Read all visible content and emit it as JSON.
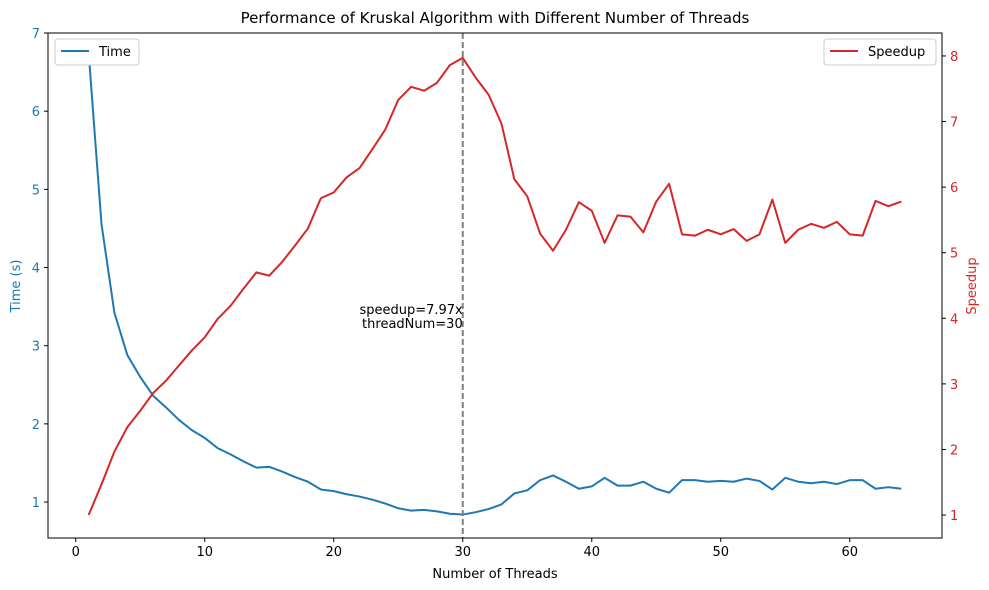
{
  "chart_data": {
    "type": "line",
    "title": "Performance of Kruskal Algorithm with Different Number of Threads",
    "xlabel": "Number of Threads",
    "ylabel_left": "Time (s)",
    "ylabel_right": "Speedup",
    "xlim": [
      -2.15,
      67.15
    ],
    "ylim_left": [
      0.54,
      7.0
    ],
    "ylim_right": [
      0.65,
      8.35
    ],
    "xticks": [
      0,
      10,
      20,
      30,
      40,
      50,
      60
    ],
    "yticks_left": [
      1,
      2,
      3,
      4,
      5,
      6,
      7
    ],
    "yticks_right": [
      1,
      2,
      3,
      4,
      5,
      6,
      7,
      8
    ],
    "x": [
      1,
      2,
      3,
      4,
      5,
      6,
      7,
      8,
      9,
      10,
      11,
      12,
      13,
      14,
      15,
      16,
      17,
      18,
      19,
      20,
      21,
      22,
      23,
      24,
      25,
      26,
      27,
      28,
      29,
      30,
      31,
      32,
      33,
      34,
      35,
      36,
      37,
      38,
      39,
      40,
      41,
      42,
      43,
      44,
      45,
      46,
      47,
      48,
      49,
      50,
      51,
      52,
      53,
      54,
      55,
      56,
      57,
      58,
      59,
      60,
      61,
      62,
      63,
      64
    ],
    "series": [
      {
        "name": "Time",
        "axis": "left",
        "color": "#1f77b4",
        "values": [
          6.75,
          4.55,
          3.42,
          2.88,
          2.6,
          2.36,
          2.21,
          2.05,
          1.92,
          1.82,
          1.69,
          1.61,
          1.52,
          1.44,
          1.45,
          1.39,
          1.32,
          1.26,
          1.16,
          1.14,
          1.1,
          1.07,
          1.03,
          0.98,
          0.92,
          0.89,
          0.9,
          0.88,
          0.85,
          0.84,
          0.87,
          0.91,
          0.97,
          1.11,
          1.15,
          1.28,
          1.34,
          1.26,
          1.17,
          1.2,
          1.31,
          1.21,
          1.21,
          1.26,
          1.17,
          1.12,
          1.28,
          1.28,
          1.26,
          1.27,
          1.26,
          1.3,
          1.27,
          1.16,
          1.31,
          1.26,
          1.24,
          1.26,
          1.23,
          1.28,
          1.28,
          1.17,
          1.19,
          1.17
        ]
      },
      {
        "name": "Speedup",
        "axis": "right",
        "color": "#d62728",
        "values": [
          1.0,
          1.47,
          1.97,
          2.34,
          2.59,
          2.86,
          3.05,
          3.28,
          3.51,
          3.71,
          3.99,
          4.19,
          4.45,
          4.7,
          4.65,
          4.86,
          5.11,
          5.37,
          5.83,
          5.92,
          6.15,
          6.29,
          6.58,
          6.88,
          7.33,
          7.53,
          7.47,
          7.59,
          7.86,
          7.97,
          7.67,
          7.41,
          6.97,
          6.12,
          5.86,
          5.29,
          5.03,
          5.35,
          5.77,
          5.64,
          5.15,
          5.57,
          5.55,
          5.31,
          5.78,
          6.05,
          5.28,
          5.26,
          5.35,
          5.28,
          5.36,
          5.18,
          5.28,
          5.81,
          5.15,
          5.35,
          5.44,
          5.38,
          5.47,
          5.28,
          5.26,
          5.79,
          5.71,
          5.78
        ]
      }
    ],
    "annotation": {
      "x": 30,
      "line_style": "dashed",
      "line_color": "#808080",
      "text_line1": "speedup=7.97x",
      "text_line2": "threadNum=30"
    },
    "legend_left": "top-left",
    "legend_right": "top-right",
    "grid": false
  }
}
